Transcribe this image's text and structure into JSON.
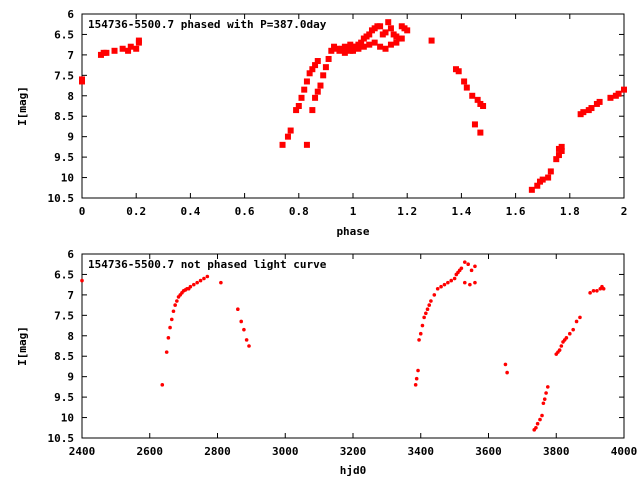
{
  "chart_data": [
    {
      "type": "scatter",
      "title": "154736-5500.7 phased with P=387.0day",
      "xlabel": "phase",
      "ylabel": "I[mag]",
      "xlim": [
        0,
        2
      ],
      "ylim": [
        10.5,
        6
      ],
      "y_inverted": true,
      "xticks": [
        0,
        0.2,
        0.4,
        0.6,
        0.8,
        1,
        1.2,
        1.4,
        1.6,
        1.8,
        2
      ],
      "xtick_labels": [
        "0",
        "0.2",
        "0.4",
        "0.6",
        "0.8",
        "1",
        "1.2",
        "1.4",
        "1.6",
        "1.8",
        "2"
      ],
      "yticks": [
        6,
        6.5,
        7,
        7.5,
        8,
        8.5,
        9,
        9.5,
        10,
        10.5
      ],
      "ytick_labels": [
        "6",
        "6.5",
        "7",
        "7.5",
        "8",
        "8.5",
        "9",
        "9.5",
        "10",
        "10.5"
      ],
      "marker_color": "#ff0000",
      "grid": false,
      "x": [
        0.0,
        0.0,
        0.07,
        0.08,
        0.09,
        0.12,
        0.15,
        0.17,
        0.18,
        0.2,
        0.21,
        0.21,
        0.74,
        0.76,
        0.77,
        0.79,
        0.8,
        0.81,
        0.82,
        0.83,
        0.84,
        0.85,
        0.86,
        0.87,
        0.85,
        0.86,
        0.87,
        0.88,
        0.89,
        0.9,
        0.91,
        0.92,
        0.93,
        0.94,
        0.95,
        0.96,
        0.97,
        0.98,
        0.99,
        1.0,
        1.01,
        1.02,
        1.03,
        1.04,
        1.05,
        1.06,
        1.07,
        1.08,
        1.09,
        1.1,
        1.11,
        1.12,
        1.13,
        1.14,
        1.15,
        1.16,
        1.17,
        1.18,
        1.19,
        1.2,
        0.97,
        0.99,
        1.0,
        1.02,
        1.04,
        1.06,
        1.08,
        1.1,
        1.12,
        1.14,
        1.16,
        1.18,
        1.29,
        1.38,
        1.39,
        1.41,
        1.42,
        1.44,
        1.46,
        1.47,
        1.48,
        1.45,
        1.47,
        1.66,
        1.68,
        1.69,
        1.7,
        1.72,
        1.73,
        1.75,
        1.76,
        1.77,
        1.76,
        1.77,
        1.84,
        1.85,
        1.87,
        1.88,
        1.9,
        1.91,
        1.95,
        1.97,
        1.98,
        2.0,
        0.83
      ],
      "y": [
        7.6,
        7.65,
        7.0,
        6.95,
        6.95,
        6.9,
        6.85,
        6.9,
        6.8,
        6.85,
        6.7,
        6.65,
        9.2,
        9.0,
        8.85,
        8.35,
        8.25,
        8.05,
        7.85,
        7.65,
        7.45,
        7.35,
        7.25,
        7.15,
        8.35,
        8.05,
        7.9,
        7.75,
        7.5,
        7.3,
        7.1,
        6.9,
        6.8,
        6.85,
        6.9,
        6.85,
        6.8,
        6.85,
        6.75,
        6.8,
        6.8,
        6.75,
        6.7,
        6.6,
        6.55,
        6.5,
        6.4,
        6.35,
        6.3,
        6.3,
        6.5,
        6.45,
        6.2,
        6.35,
        6.5,
        6.55,
        6.6,
        6.3,
        6.35,
        6.4,
        6.95,
        6.9,
        6.9,
        6.85,
        6.8,
        6.75,
        6.7,
        6.8,
        6.85,
        6.75,
        6.7,
        6.6,
        6.65,
        7.35,
        7.4,
        7.65,
        7.8,
        8.0,
        8.1,
        8.2,
        8.25,
        8.7,
        8.9,
        10.3,
        10.2,
        10.1,
        10.05,
        10.0,
        9.85,
        9.55,
        9.45,
        9.35,
        9.3,
        9.25,
        8.45,
        8.4,
        8.35,
        8.3,
        8.2,
        8.15,
        8.05,
        8.0,
        7.95,
        7.85,
        9.2
      ]
    },
    {
      "type": "scatter",
      "title": "154736-5500.7 not phased light curve",
      "xlabel": "hjd0",
      "ylabel": "I[mag]",
      "xlim": [
        2400,
        4000
      ],
      "ylim": [
        10.5,
        6
      ],
      "y_inverted": true,
      "xticks": [
        2400,
        2600,
        2800,
        3000,
        3200,
        3400,
        3600,
        3800,
        4000
      ],
      "xtick_labels": [
        "2400",
        "2600",
        "2800",
        "3000",
        "3200",
        "3400",
        "3600",
        "3800",
        "4000"
      ],
      "yticks": [
        6,
        6.5,
        7,
        7.5,
        8,
        8.5,
        9,
        9.5,
        10,
        10.5
      ],
      "ytick_labels": [
        "6",
        "6.5",
        "7",
        "7.5",
        "8",
        "8.5",
        "9",
        "9.5",
        "10",
        "10.5"
      ],
      "marker_color": "#ff0000",
      "grid": false,
      "x": [
        2400,
        2637,
        2650,
        2655,
        2660,
        2665,
        2670,
        2675,
        2680,
        2685,
        2690,
        2695,
        2700,
        2705,
        2710,
        2715,
        2720,
        2730,
        2740,
        2750,
        2760,
        2770,
        2810,
        2860,
        2870,
        2878,
        2886,
        2893,
        3385,
        3388,
        3392,
        3395,
        3400,
        3405,
        3410,
        3415,
        3420,
        3425,
        3430,
        3440,
        3450,
        3460,
        3470,
        3480,
        3490,
        3500,
        3505,
        3510,
        3515,
        3520,
        3530,
        3540,
        3550,
        3560,
        3530,
        3545,
        3560,
        3650,
        3655,
        3735,
        3740,
        3745,
        3752,
        3758,
        3762,
        3766,
        3770,
        3775,
        3800,
        3805,
        3810,
        3815,
        3820,
        3825,
        3830,
        3840,
        3850,
        3860,
        3870,
        3900,
        3910,
        3920,
        3930,
        3935,
        3940
      ],
      "y": [
        6.65,
        9.2,
        8.4,
        8.05,
        7.8,
        7.6,
        7.4,
        7.25,
        7.15,
        7.05,
        7.0,
        6.95,
        6.9,
        6.88,
        6.85,
        6.85,
        6.8,
        6.75,
        6.7,
        6.65,
        6.6,
        6.55,
        6.7,
        7.35,
        7.65,
        7.85,
        8.1,
        8.25,
        9.2,
        9.05,
        8.85,
        8.1,
        7.95,
        7.75,
        7.55,
        7.45,
        7.35,
        7.25,
        7.15,
        7.0,
        6.85,
        6.8,
        6.75,
        6.7,
        6.65,
        6.6,
        6.5,
        6.45,
        6.4,
        6.35,
        6.2,
        6.25,
        6.4,
        6.3,
        6.7,
        6.75,
        6.7,
        8.7,
        8.9,
        10.3,
        10.25,
        10.15,
        10.05,
        9.95,
        9.65,
        9.55,
        9.4,
        9.25,
        8.45,
        8.4,
        8.35,
        8.25,
        8.15,
        8.1,
        8.05,
        7.95,
        7.85,
        7.65,
        7.55,
        6.95,
        6.9,
        6.9,
        6.85,
        6.8,
        6.85
      ]
    }
  ]
}
